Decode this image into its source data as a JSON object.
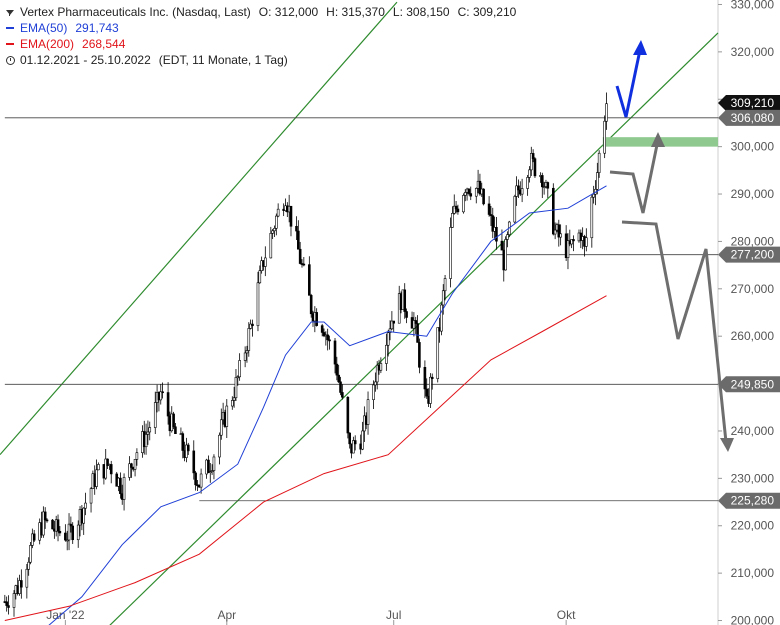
{
  "header": {
    "instrument": "Vertex Pharmaceuticals Inc. (Nasdaq, Last)",
    "open": "O: 312,000",
    "high": "H: 315,370",
    "low": "L: 308,150",
    "close": "C: 309,210",
    "ema50_label": "EMA(50)",
    "ema50_value": "291,743",
    "ema200_label": "EMA(200)",
    "ema200_value": "268,544",
    "range": "01.12.2021 - 25.10.2022",
    "range_info": "(EDT, 11 Monate, 1 Tag)"
  },
  "colors": {
    "candle": "#000000",
    "ema50": "#1f3fd6",
    "ema200": "#e0141a",
    "channel": "#2e8b2e",
    "support_zone": "#8fc98f",
    "projection": "#6e6e6e",
    "bull_arrow": "#1030e0",
    "label_bg": "#6b6b6b",
    "price_label_bg": "#111111"
  },
  "chart_data": {
    "type": "candlestick",
    "ylim": [
      198000,
      332000
    ],
    "y_ticks": [
      "330,000",
      "320,000",
      "310,000",
      "300,000",
      "290,000",
      "280,000",
      "270,000",
      "260,000",
      "250,000",
      "240,000",
      "230,000",
      "220,000",
      "210,000",
      "200,000"
    ],
    "y_tick_values": [
      330000,
      320000,
      310000,
      300000,
      290000,
      280000,
      270000,
      260000,
      250000,
      240000,
      230000,
      220000,
      210000,
      200000
    ],
    "x_ticks": [
      "Jan '22",
      "Apr",
      "Jul",
      "Okt"
    ],
    "x_tick_dates": [
      "2022-01-03",
      "2022-04-01",
      "2022-07-01",
      "2022-10-03"
    ],
    "date_range": [
      "2021-12-01",
      "2022-10-25"
    ],
    "series": [
      {
        "name": "Vertex Pharmaceuticals Inc. (Nasdaq, Last)",
        "type": "candlestick",
        "close_points": [
          {
            "date": "2021-12-01",
            "value": 204000
          },
          {
            "date": "2021-12-08",
            "value": 207000
          },
          {
            "date": "2021-12-15",
            "value": 215000
          },
          {
            "date": "2021-12-22",
            "value": 221000
          },
          {
            "date": "2021-12-29",
            "value": 219000
          },
          {
            "date": "2022-01-05",
            "value": 218000
          },
          {
            "date": "2022-01-12",
            "value": 223000
          },
          {
            "date": "2022-01-20",
            "value": 231000
          },
          {
            "date": "2022-01-27",
            "value": 233000
          },
          {
            "date": "2022-02-03",
            "value": 228000
          },
          {
            "date": "2022-02-10",
            "value": 235000
          },
          {
            "date": "2022-02-17",
            "value": 240000
          },
          {
            "date": "2022-02-24",
            "value": 248000
          },
          {
            "date": "2022-03-03",
            "value": 240000
          },
          {
            "date": "2022-03-10",
            "value": 235000
          },
          {
            "date": "2022-03-17",
            "value": 229000
          },
          {
            "date": "2022-03-24",
            "value": 234000
          },
          {
            "date": "2022-03-31",
            "value": 243000
          },
          {
            "date": "2022-04-07",
            "value": 251000
          },
          {
            "date": "2022-04-14",
            "value": 262000
          },
          {
            "date": "2022-04-21",
            "value": 276000
          },
          {
            "date": "2022-04-28",
            "value": 285000
          },
          {
            "date": "2022-05-03",
            "value": 290000
          },
          {
            "date": "2022-05-10",
            "value": 278000
          },
          {
            "date": "2022-05-17",
            "value": 266000
          },
          {
            "date": "2022-05-24",
            "value": 262000
          },
          {
            "date": "2022-05-31",
            "value": 253000
          },
          {
            "date": "2022-06-07",
            "value": 236000
          },
          {
            "date": "2022-06-14",
            "value": 239000
          },
          {
            "date": "2022-06-21",
            "value": 252000
          },
          {
            "date": "2022-06-28",
            "value": 262000
          },
          {
            "date": "2022-07-05",
            "value": 268000
          },
          {
            "date": "2022-07-12",
            "value": 263000
          },
          {
            "date": "2022-07-19",
            "value": 245000
          },
          {
            "date": "2022-07-26",
            "value": 262000
          },
          {
            "date": "2022-08-02",
            "value": 285000
          },
          {
            "date": "2022-08-09",
            "value": 292000
          },
          {
            "date": "2022-08-16",
            "value": 291000
          },
          {
            "date": "2022-08-23",
            "value": 284000
          },
          {
            "date": "2022-08-30",
            "value": 276000
          },
          {
            "date": "2022-09-06",
            "value": 290000
          },
          {
            "date": "2022-09-13",
            "value": 297000
          },
          {
            "date": "2022-09-20",
            "value": 294000
          },
          {
            "date": "2022-09-27",
            "value": 282000
          },
          {
            "date": "2022-10-04",
            "value": 278000
          },
          {
            "date": "2022-10-11",
            "value": 282000
          },
          {
            "date": "2022-10-13",
            "value": 278000
          },
          {
            "date": "2022-10-17",
            "value": 289000
          },
          {
            "date": "2022-10-20",
            "value": 295000
          },
          {
            "date": "2022-10-24",
            "value": 307000
          },
          {
            "date": "2022-10-25",
            "value": 309210
          }
        ]
      },
      {
        "name": "EMA(50)",
        "color": "#1f3fd6",
        "points": [
          {
            "date": "2021-12-22",
            "value": 198000
          },
          {
            "date": "2022-01-12",
            "value": 205000
          },
          {
            "date": "2022-02-03",
            "value": 216000
          },
          {
            "date": "2022-02-24",
            "value": 224000
          },
          {
            "date": "2022-03-17",
            "value": 227000
          },
          {
            "date": "2022-04-07",
            "value": 233000
          },
          {
            "date": "2022-04-21",
            "value": 245000
          },
          {
            "date": "2022-05-03",
            "value": 256000
          },
          {
            "date": "2022-05-17",
            "value": 263000
          },
          {
            "date": "2022-05-24",
            "value": 263000
          },
          {
            "date": "2022-06-07",
            "value": 258000
          },
          {
            "date": "2022-06-28",
            "value": 261000
          },
          {
            "date": "2022-07-19",
            "value": 260000
          },
          {
            "date": "2022-08-02",
            "value": 269000
          },
          {
            "date": "2022-08-23",
            "value": 280000
          },
          {
            "date": "2022-09-13",
            "value": 286000
          },
          {
            "date": "2022-10-04",
            "value": 287000
          },
          {
            "date": "2022-10-25",
            "value": 291743
          }
        ]
      },
      {
        "name": "EMA(200)",
        "color": "#e0141a",
        "points": [
          {
            "date": "2021-12-01",
            "value": 200000
          },
          {
            "date": "2022-01-05",
            "value": 203000
          },
          {
            "date": "2022-02-10",
            "value": 208000
          },
          {
            "date": "2022-03-17",
            "value": 214000
          },
          {
            "date": "2022-04-21",
            "value": 225000
          },
          {
            "date": "2022-05-24",
            "value": 231000
          },
          {
            "date": "2022-06-28",
            "value": 235000
          },
          {
            "date": "2022-07-26",
            "value": 245000
          },
          {
            "date": "2022-08-23",
            "value": 255000
          },
          {
            "date": "2022-09-20",
            "value": 261000
          },
          {
            "date": "2022-10-25",
            "value": 268544
          }
        ]
      }
    ],
    "horizontal_levels": [
      {
        "label": "306,080",
        "value": 306080,
        "from": "2021-12-01"
      },
      {
        "label": "277,200",
        "value": 277200,
        "from": "2022-08-23"
      },
      {
        "label": "249,850",
        "value": 249850,
        "from": "2021-12-01"
      },
      {
        "label": "225,280",
        "value": 225280,
        "from": "2022-03-17"
      }
    ],
    "last_price_label": "309,210",
    "last_price": 309210,
    "support_zone": {
      "low": 300000,
      "high": 302000
    },
    "trend_channel": {
      "color": "#2e8b2e"
    },
    "projections": [
      "bullish scenario (blue arrow)",
      "bearish scenario (grey arrows)"
    ]
  }
}
